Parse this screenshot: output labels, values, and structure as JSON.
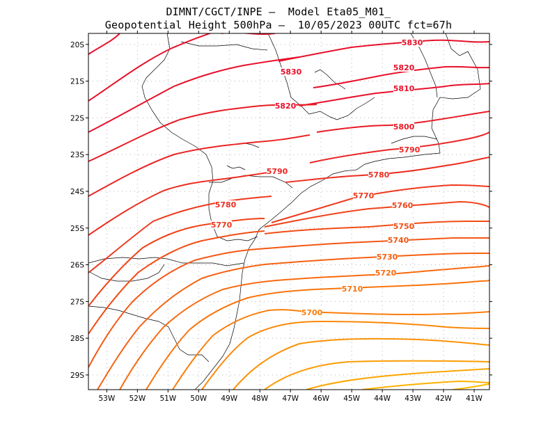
{
  "header": {
    "line1": "DIMNT/CGCT/INPE –  Model Eta05_M01_",
    "line2": "Geopotential Height 500hPa –  10/05/2023 00UTC fct=67h"
  },
  "axes": {
    "lat_labels": [
      "20S",
      "21S",
      "22S",
      "23S",
      "24S",
      "25S",
      "26S",
      "27S",
      "28S",
      "29S"
    ],
    "lon_labels": [
      "53W",
      "52W",
      "51W",
      "50W",
      "49W",
      "48W",
      "47W",
      "46W",
      "45W",
      "44W",
      "43W",
      "42W",
      "41W"
    ]
  },
  "map_extent": {
    "lon_min": -53.6,
    "lon_max": -40.5,
    "lat_max": -19.7,
    "lat_min": -29.4
  },
  "colors": {
    "frame": "#000000",
    "grid": "#b0b0b0",
    "coast": "#000000"
  },
  "chart_data": {
    "type": "contour",
    "variable": "Geopotential Height 500hPa",
    "levels": [
      {
        "value": 5830,
        "label": "5830",
        "color": "#e8102a"
      },
      {
        "value": 5820,
        "label": "5820",
        "color": "#e8102a"
      },
      {
        "value": 5810,
        "label": "5810",
        "color": "#e8102a"
      },
      {
        "value": 5800,
        "label": "5800",
        "color": "#e81a24"
      },
      {
        "value": 5790,
        "label": "5790",
        "color": "#ea2424"
      },
      {
        "value": 5780,
        "label": "5780",
        "color": "#ec2e20"
      },
      {
        "value": 5770,
        "label": "5770",
        "color": "#ee381c"
      },
      {
        "value": 5760,
        "label": "5760",
        "color": "#f04218"
      },
      {
        "value": 5750,
        "label": "5750",
        "color": "#f24c14"
      },
      {
        "value": 5740,
        "label": "5740",
        "color": "#f45612"
      },
      {
        "value": 5730,
        "label": "5730",
        "color": "#f66010"
      },
      {
        "value": 5720,
        "label": "5720",
        "color": "#f86a0e"
      },
      {
        "value": 5710,
        "label": "5710",
        "color": "#f9740c"
      },
      {
        "value": 5700,
        "label": "5700",
        "color": "#fa7e0a"
      }
    ]
  }
}
